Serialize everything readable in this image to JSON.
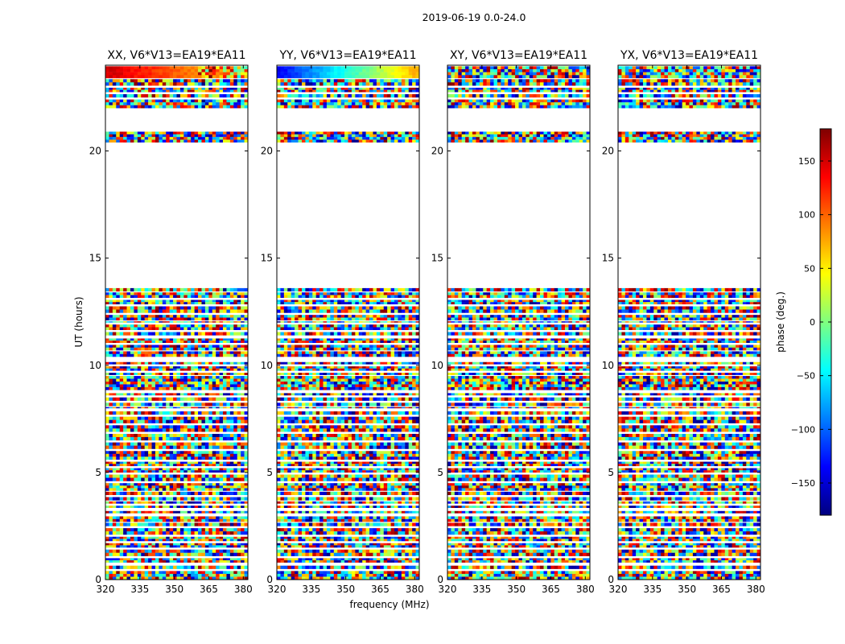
{
  "suptitle": "2019-06-19 0.0-24.0",
  "xlabel": "frequency (MHz)",
  "ylabel": "UT (hours)",
  "colorbar": {
    "label": "phase (deg.)",
    "range": [
      -180,
      180
    ],
    "ticks": [
      150,
      100,
      50,
      0,
      -50,
      -100,
      -150
    ],
    "tick_labels": [
      "150",
      "100",
      "50",
      "0",
      "−50",
      "−100",
      "−150"
    ],
    "colormap": "jet",
    "colors": [
      "#00007f",
      "#0000ff",
      "#007fff",
      "#00ffff",
      "#7fff7f",
      "#ffff00",
      "#ff7f00",
      "#ff0000",
      "#7f0000"
    ]
  },
  "chart_data": {
    "type": "heatmap",
    "value": "visibility phase (deg.)",
    "xlim": [
      320,
      382
    ],
    "ylim": [
      0,
      24
    ],
    "x_ticks": [
      320,
      335,
      350,
      365,
      380
    ],
    "x_tick_labels": [
      "320",
      "335",
      "350",
      "365",
      "380"
    ],
    "y_ticks": [
      0,
      5,
      10,
      15,
      20
    ],
    "y_tick_labels": [
      "0",
      "5",
      "10",
      "15",
      "20"
    ],
    "panels": [
      {
        "title": "XX, V6*V13=EA19*EA11"
      },
      {
        "title": "YY, V6*V13=EA19*EA11"
      },
      {
        "title": "XY, V6*V13=EA19*EA11"
      },
      {
        "title": "YX, V6*V13=EA19*EA11"
      }
    ],
    "observed_intervals_ut_hours": [
      [
        0.0,
        0.4
      ],
      [
        0.5,
        0.65
      ],
      [
        0.8,
        1.0
      ],
      [
        1.1,
        1.4
      ],
      [
        1.5,
        1.7
      ],
      [
        1.8,
        2.0
      ],
      [
        2.1,
        2.4
      ],
      [
        2.5,
        2.65
      ],
      [
        2.7,
        2.95
      ],
      [
        3.1,
        3.2
      ],
      [
        3.35,
        3.45
      ],
      [
        3.55,
        3.65
      ],
      [
        3.7,
        3.85
      ],
      [
        3.95,
        4.1
      ],
      [
        4.15,
        4.5
      ],
      [
        4.6,
        4.9
      ],
      [
        5.0,
        5.2
      ],
      [
        5.3,
        5.5
      ],
      [
        5.6,
        6.0
      ],
      [
        6.1,
        6.4
      ],
      [
        6.5,
        6.8
      ],
      [
        6.9,
        7.2
      ],
      [
        7.3,
        7.6
      ],
      [
        7.7,
        7.85
      ],
      [
        8.0,
        8.05
      ],
      [
        8.1,
        8.25
      ],
      [
        8.35,
        8.5
      ],
      [
        8.6,
        8.7
      ],
      [
        8.85,
        9.5
      ],
      [
        9.55,
        9.65
      ],
      [
        9.75,
        9.95
      ],
      [
        10.05,
        10.15
      ],
      [
        10.4,
        10.65
      ],
      [
        10.7,
        10.95
      ],
      [
        11.05,
        11.25
      ],
      [
        11.4,
        11.55
      ],
      [
        11.65,
        11.9
      ],
      [
        12.0,
        12.05
      ],
      [
        12.1,
        12.35
      ],
      [
        12.45,
        12.75
      ],
      [
        12.85,
        13.05
      ],
      [
        13.15,
        13.4
      ],
      [
        13.45,
        13.6
      ],
      [
        20.4,
        20.9
      ],
      [
        22.0,
        22.4
      ],
      [
        22.5,
        22.65
      ],
      [
        22.75,
        22.95
      ],
      [
        23.05,
        23.35
      ],
      [
        23.4,
        23.95
      ]
    ],
    "annotations": [
      {
        "panel": "XX",
        "ut_hours": [
          23.3,
          23.95
        ],
        "note": "smooth phase gradient across frequency (red to yellow)"
      },
      {
        "panel": "YY",
        "ut_hours": [
          23.3,
          23.95
        ],
        "note": "smooth phase gradient across frequency (blue to yellow)"
      }
    ]
  }
}
